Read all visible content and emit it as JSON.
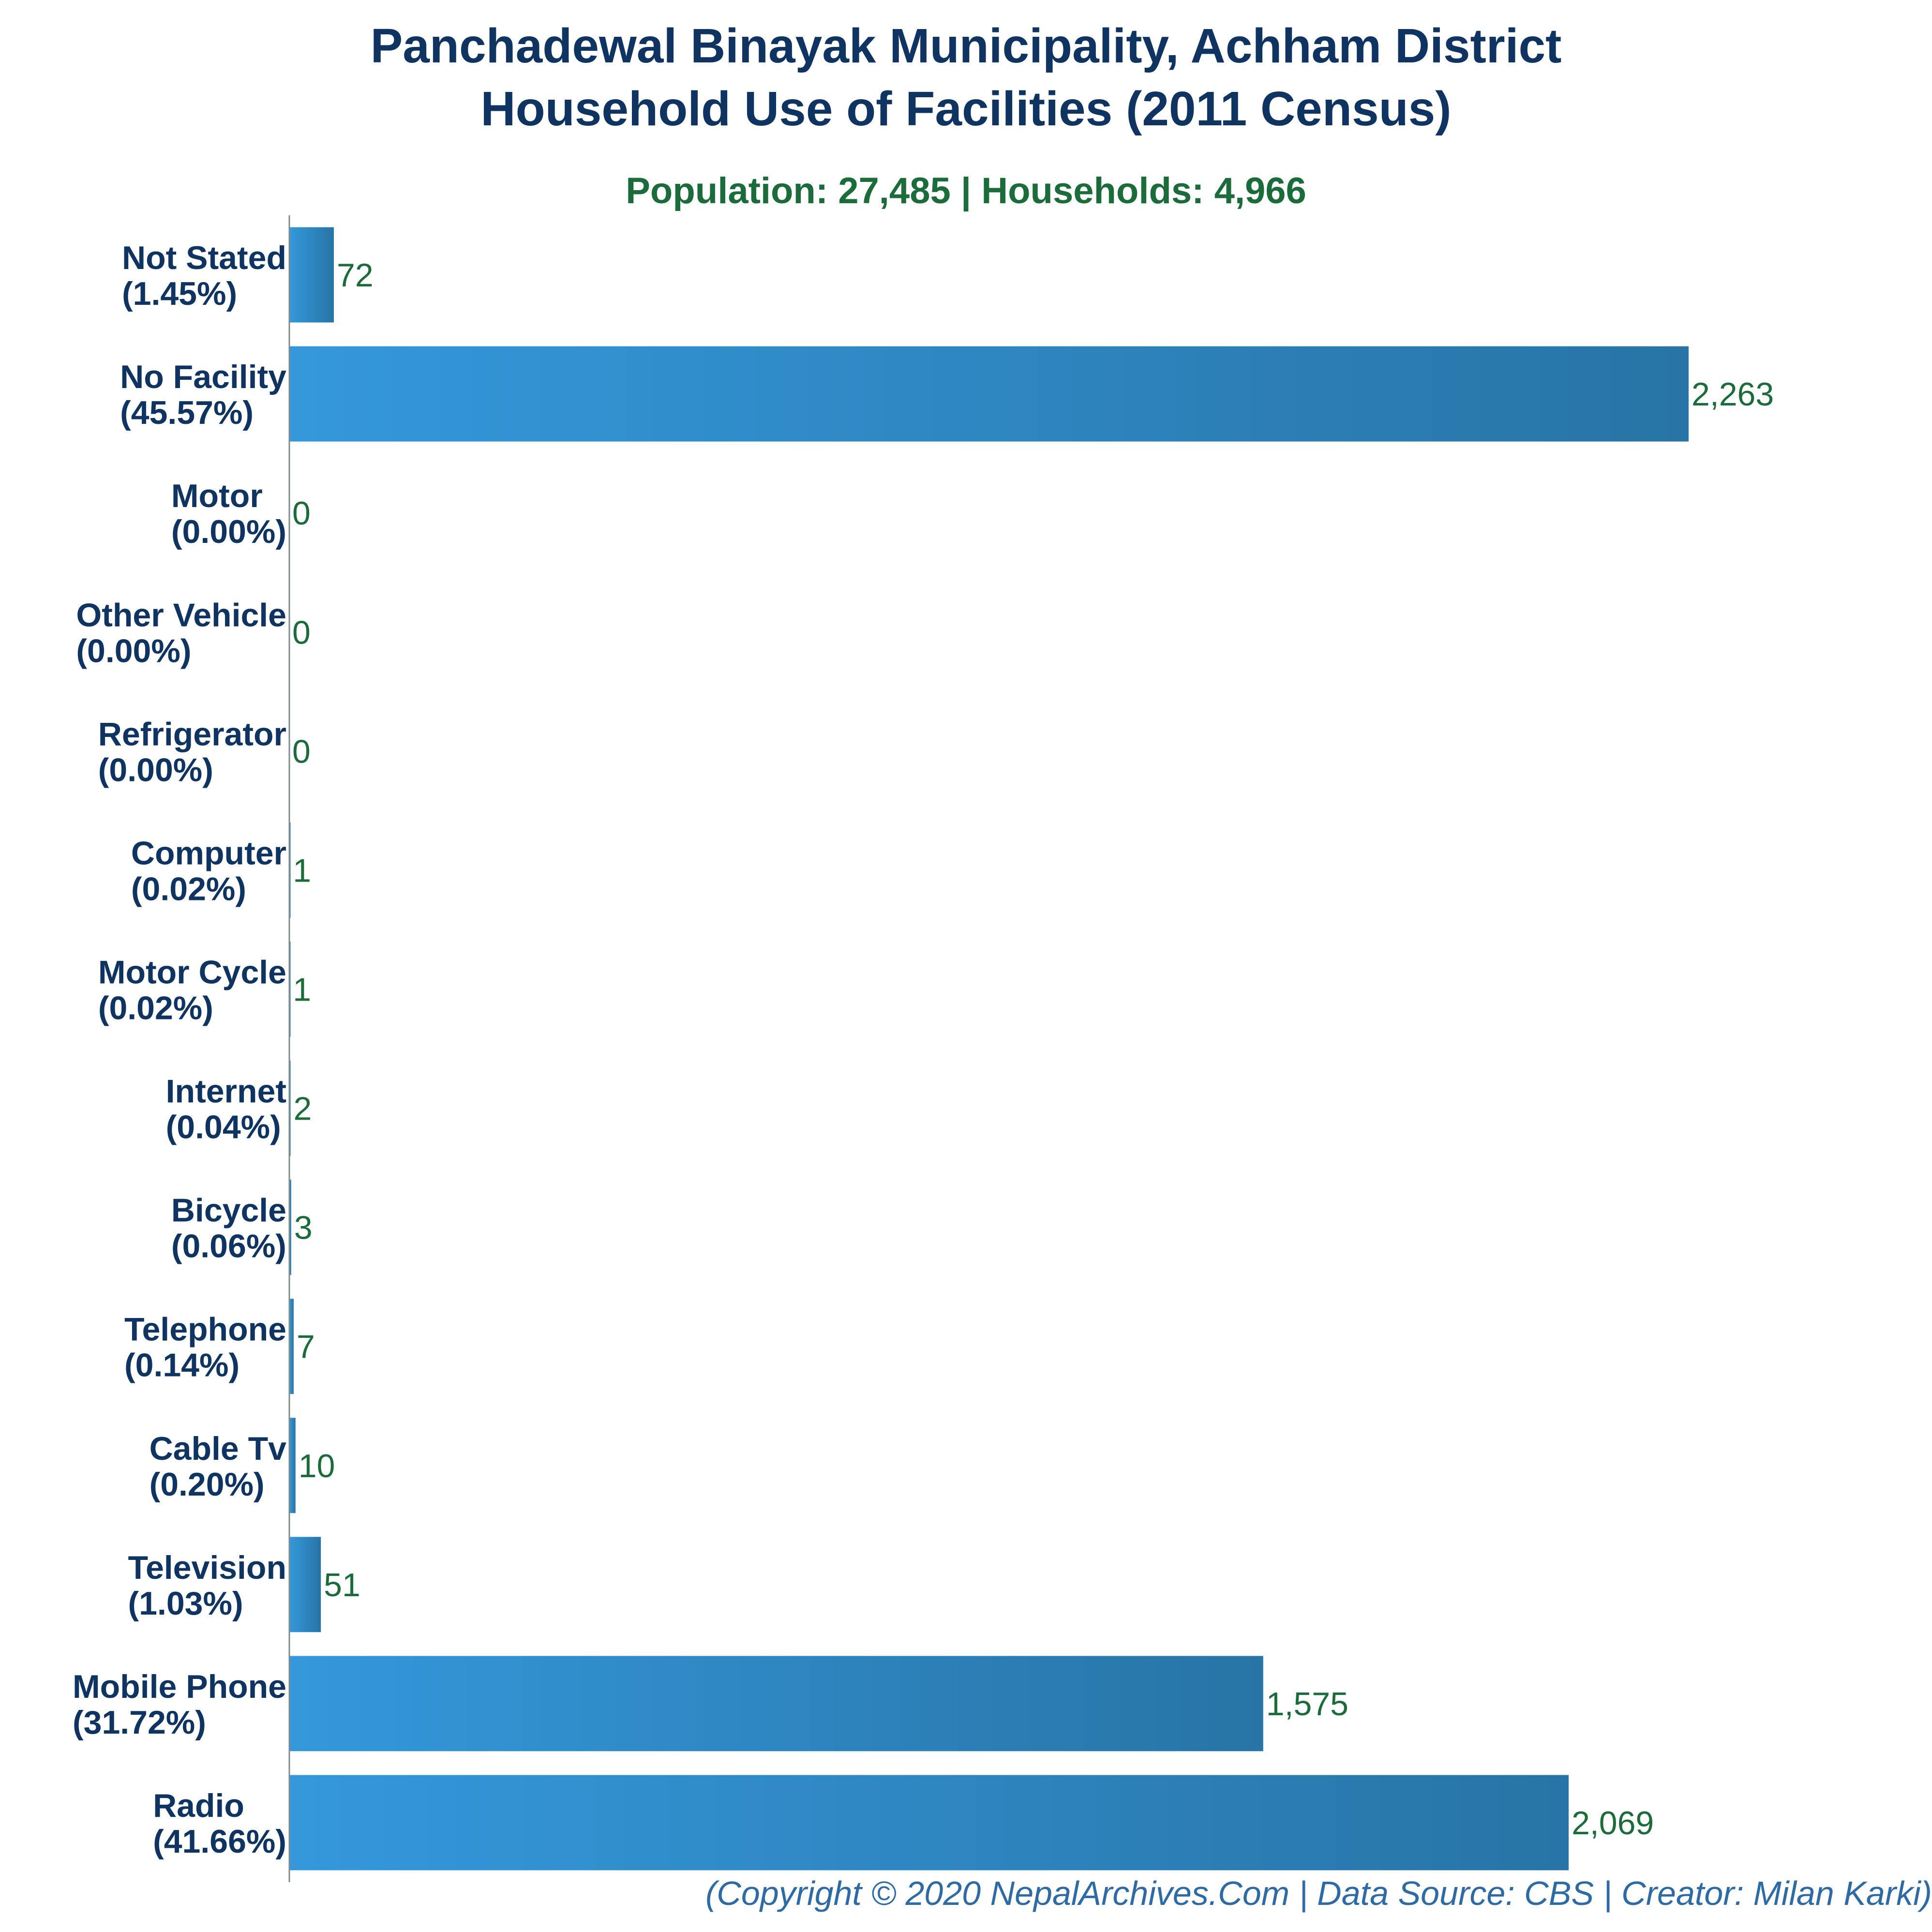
{
  "title_lines": [
    "Panchadewal Binayak Municipality, Achham District",
    "Household Use of Facilities (2011 Census)"
  ],
  "subtitle": "Population: 27,485 | Households: 4,966",
  "footer": "(Copyright © 2020 NepalArchives.Com | Data Source: CBS | Creator: Milan Karki)",
  "colors": {
    "title": "#0f3461",
    "subtitle": "#1c6b3a",
    "category_label": "#0f3461",
    "value_label": "#1c6b3a",
    "bar_light": "#3498db",
    "bar_dark": "#2874a6",
    "axis": "#7f8c8d",
    "footer": "#2e6aa3"
  },
  "chart_data": {
    "type": "bar",
    "orientation": "horizontal",
    "categories": [
      "Not Stated",
      "No Facility",
      "Motor",
      "Other Vehicle",
      "Refrigerator",
      "Computer",
      "Motor Cycle",
      "Internet",
      "Bicycle",
      "Telephone",
      "Cable Tv",
      "Television",
      "Mobile Phone",
      "Radio"
    ],
    "percent_labels": [
      "(1.45%)",
      "(45.57%)",
      "(0.00%)",
      "(0.00%)",
      "(0.00%)",
      "(0.02%)",
      "(0.02%)",
      "(0.04%)",
      "(0.06%)",
      "(0.14%)",
      "(0.20%)",
      "(1.03%)",
      "(31.72%)",
      "(41.66%)"
    ],
    "values": [
      72,
      2263,
      0,
      0,
      0,
      1,
      1,
      2,
      3,
      7,
      10,
      51,
      1575,
      2069
    ],
    "value_labels": [
      "72",
      "2,263",
      "0",
      "0",
      "0",
      "1",
      "1",
      "2",
      "3",
      "7",
      "10",
      "51",
      "1,575",
      "2,069"
    ],
    "xlim": [
      0,
      2263
    ],
    "grid": false,
    "legend": "none"
  }
}
